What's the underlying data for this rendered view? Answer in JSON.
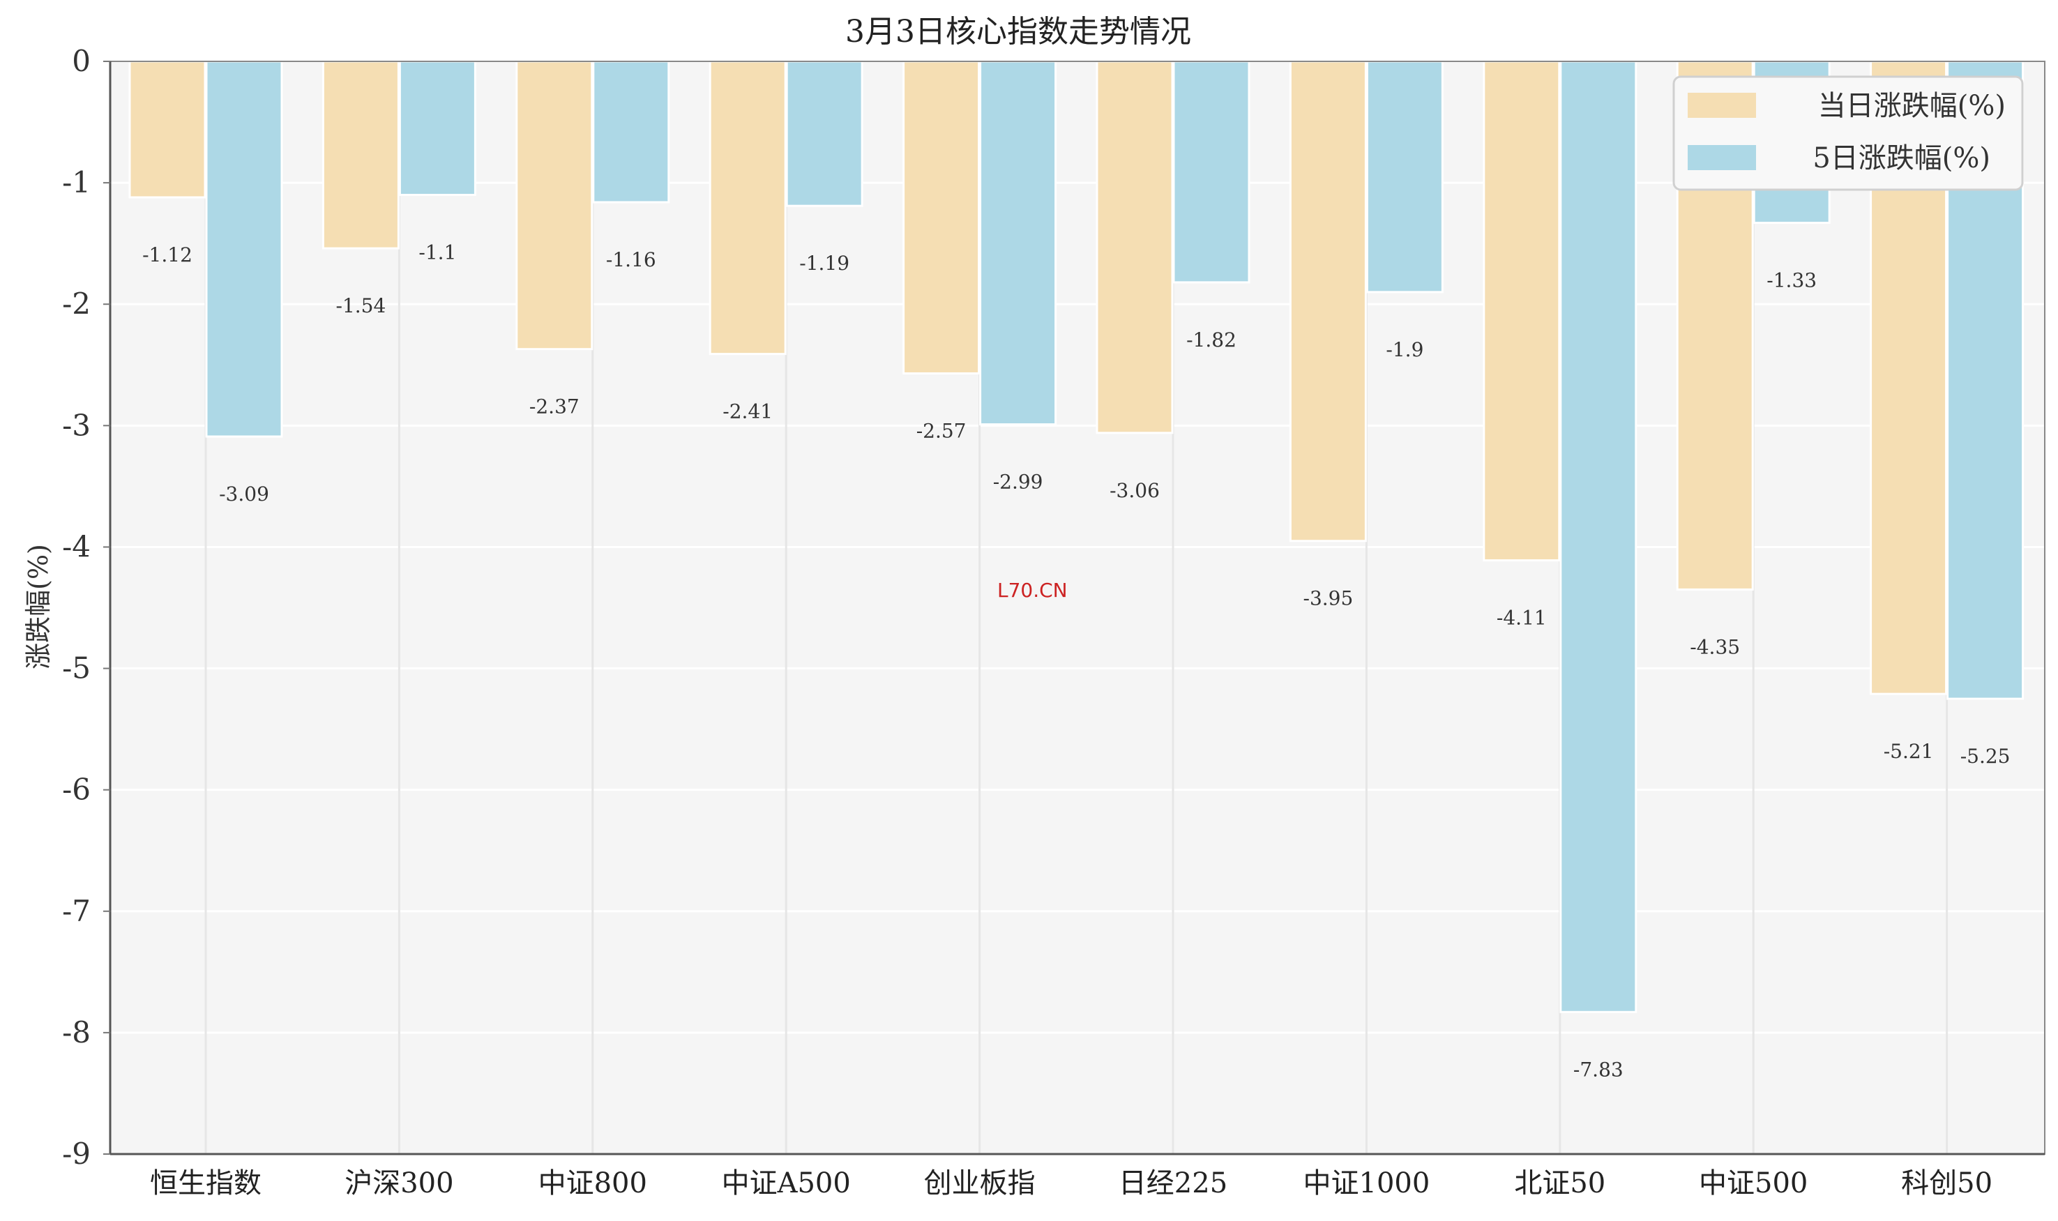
{
  "chart_data": {
    "type": "bar",
    "title": "3月3日核心指数走势情况",
    "xlabel": "",
    "ylabel": "涨跌幅(%)",
    "ylim": [
      -9,
      0
    ],
    "yticks": [
      0,
      -1,
      -2,
      -3,
      -4,
      -5,
      -6,
      -7,
      -8,
      -9
    ],
    "grid": true,
    "legend_position": "top-right",
    "categories": [
      "恒生指数",
      "沪深300",
      "中证800",
      "中证A500",
      "创业板指",
      "日经225",
      "中证1000",
      "北证50",
      "中证500",
      "科创50"
    ],
    "series": [
      {
        "name": "当日涨跌幅(%)",
        "color": "#f5deb3",
        "values": [
          -1.12,
          -1.54,
          -2.37,
          -2.41,
          -2.57,
          -3.06,
          -3.95,
          -4.11,
          -4.35,
          -5.21
        ]
      },
      {
        "name": "5日涨跌幅(%)",
        "color": "#add8e6",
        "values": [
          -3.09,
          -1.1,
          -1.16,
          -1.19,
          -2.99,
          -1.82,
          -1.9,
          -7.83,
          -1.33,
          -5.25
        ]
      }
    ],
    "annotations": [
      "L70.CN"
    ]
  }
}
